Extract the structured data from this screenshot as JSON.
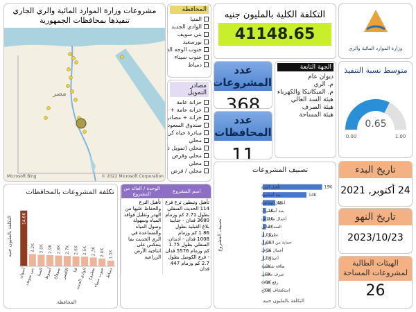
{
  "map_panel": {
    "title": "مشروعات وزارة الموارد المائية والري الجاري تنفيذها بمحافظات الجمهورية",
    "label": "مصر",
    "brand": "Microsoft Bing",
    "attribution": "© 2022 Microsoft Corporation"
  },
  "governorate_slicer": {
    "title": "المحافظة",
    "items": [
      "المنيا",
      "الوادي الجديد",
      "بني سويف",
      "بورسعيد",
      "جنوب الوجه القبلي",
      "جنوب سيناء",
      "دمياط"
    ]
  },
  "funding_slicer": {
    "title": "مصادر التمويل",
    "items": [
      "خزانة عامة",
      "خزانة عامة + قروض",
      "خزانة + مصادر أخرى",
      "صندوق السعودي",
      "مبادرة حياه كريمه",
      "محلي",
      "محلي (تمويل ذاتي)",
      "محلي وقرض",
      "محلي",
      "محلي / قرض"
    ]
  },
  "total_cost": {
    "title": "التكلفة الكلية بالمليون جنيه",
    "value": 41148.65
  },
  "logo": {
    "text": "وزارة الموارد المائية والري"
  },
  "projects_count": {
    "title": "عدد المشروعات",
    "value": 368
  },
  "governorates_count": {
    "title": "عدد المحافظات",
    "value": 11
  },
  "agency_slicer": {
    "title": "الجهة التابعة",
    "items": [
      "ديوان عام",
      "م. الري",
      "م. الميكانيكا والكهرباء",
      "هيئة السد العالي",
      "هيئة الصرف",
      "هيئة المساحة"
    ]
  },
  "start_date": {
    "title": "تاريخ البدء",
    "value": "24 أكتوبر, 2021"
  },
  "end_date": {
    "title": "تاريخ النهو",
    "value": "2023/10/23"
  },
  "agencies_card": {
    "title": "الهيئات الطالبة لمشروعات المساحة",
    "value": 26
  },
  "projects_table": {
    "columns": [
      "اسم المشروع",
      "الوحدة / العائد من المشروع"
    ],
    "rows": [
      [
        "تأهيل وتبطين ترع فرع 114 الحديث السفلي بطول 2.71 كم وزمام 3680 فدان - جنابية بلاغ القبلية بطول 1.86 كم وزمام 1008 فدان - ادندان السفلي بطول 1.75 كم وزمام 5576 فدان - فرع الكوميل بطول 2.7 كم وزمام 447 فدان",
        "تأهيل الترع والحفاظ عليها من الهدر وتقليل فواقد المياه وسهولة وصول المياه والمساعدة في الري الحديث بما ينعكس على انتاجية الأرض الزراعية"
      ]
    ]
  },
  "chart_data": [
    {
      "type": "gauge",
      "title": "متوسط نسبة التنفيذ",
      "value": 0.65,
      "ylim": [
        0,
        1
      ],
      "yticks": [
        {
          "value": 0,
          "label": "0.00"
        },
        {
          "value": 1,
          "label": "1.00"
        }
      ],
      "color": "#2b8fd8"
    },
    {
      "type": "bar",
      "horizontal": false,
      "title": "تكلفة المشروعات بالمحافظات",
      "y_label": "التكلفة بالمليون جنيه",
      "x_label": "المحافظة",
      "categories": [
        "أسوان",
        "بني سويف",
        "المنيا",
        "أسيوط",
        "سوهاج",
        "الأقصر",
        "قنا",
        "الوادي الجديد",
        "مطروح",
        "جنوب سيناء",
        "دمياط"
      ],
      "values": [
        14600,
        3200,
        3000,
        2900,
        2800,
        2700,
        2600,
        2500,
        2300,
        2000,
        1500
      ],
      "value_labels": [
        "14.6K",
        "3.2K",
        "3.0K",
        "2.9K",
        "2.8K",
        "2.7K",
        "2.6K",
        "2.5K",
        "2.3K",
        "2.0K",
        "1.5K"
      ],
      "ylim": [
        0,
        16000
      ],
      "color": "#eeb49a",
      "highlight_color": "#8e3b22"
    },
    {
      "type": "bar",
      "horizontal": true,
      "title": "تصنيف المشروعات",
      "y_label": "تصنيف المشروع",
      "x_label": "التكلفة بالمليون جنيه",
      "categories": [
        "تأهيل الترع",
        "بنية أساسية",
        "أعمال صناعية",
        "بنية أساسية -",
        "أعمال محطات",
        "السد العالي",
        "تطوير ري",
        "حماية من السيول",
        "أعمال صرف",
        "أعمال آبار",
        "طاقة شمسية",
        "صرف مغطى",
        "رفع كفاءة",
        "استكشاف إصلاح"
      ],
      "values": [
        19000,
        14000,
        4000,
        1000,
        1000,
        1000,
        400,
        400,
        300,
        300,
        200,
        200,
        100,
        100
      ],
      "value_labels": [
        "19K",
        "14K",
        "4K",
        "1K",
        "1K",
        "1K",
        "0K",
        "0K",
        "0K",
        "0K",
        "0K",
        "0K",
        "0K",
        "0K"
      ],
      "xlim": [
        0,
        20000
      ],
      "color": "#4a78c8"
    }
  ]
}
